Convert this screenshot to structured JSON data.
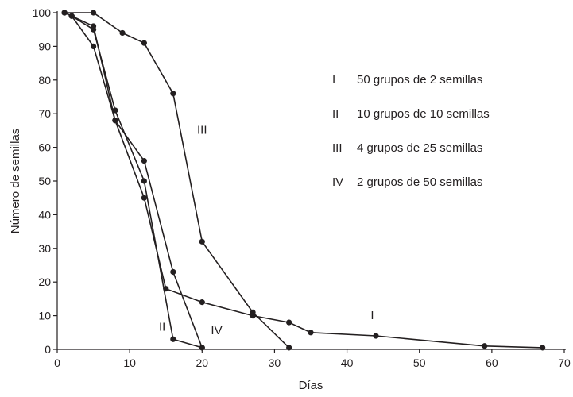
{
  "chart_data": {
    "type": "line",
    "xlabel": "Días",
    "ylabel": "Número de semillas",
    "xlim": [
      0,
      70
    ],
    "ylim": [
      0,
      100
    ],
    "xticks": [
      0,
      10,
      20,
      30,
      40,
      50,
      60,
      70
    ],
    "yticks": [
      0,
      10,
      20,
      30,
      40,
      50,
      60,
      70,
      80,
      90,
      100
    ],
    "grid": false,
    "legend_position": "right",
    "colors": {
      "ink": "#231f20"
    },
    "series": [
      {
        "name": "I",
        "points": [
          [
            1,
            100
          ],
          [
            2,
            99
          ],
          [
            5,
            90
          ],
          [
            8,
            68
          ],
          [
            12,
            45
          ],
          [
            15,
            18
          ],
          [
            20,
            14
          ],
          [
            27,
            10
          ],
          [
            32,
            8
          ],
          [
            35,
            5
          ],
          [
            44,
            4
          ],
          [
            59,
            1
          ],
          [
            67,
            0.5
          ]
        ]
      },
      {
        "name": "II",
        "points": [
          [
            1,
            100
          ],
          [
            2,
            99
          ],
          [
            5,
            95
          ],
          [
            8,
            71
          ],
          [
            12,
            50
          ],
          [
            16,
            3
          ],
          [
            20,
            0.5
          ]
        ]
      },
      {
        "name": "III",
        "points": [
          [
            1,
            100
          ],
          [
            5,
            100
          ],
          [
            9,
            94
          ],
          [
            12,
            91
          ],
          [
            16,
            76
          ],
          [
            20,
            32
          ],
          [
            27,
            11
          ],
          [
            32,
            0.5
          ]
        ]
      },
      {
        "name": "IV",
        "points": [
          [
            1,
            100
          ],
          [
            2,
            99
          ],
          [
            5,
            96
          ],
          [
            8,
            68
          ],
          [
            12,
            56
          ],
          [
            16,
            23
          ],
          [
            20,
            0.5
          ]
        ]
      }
    ],
    "legend": [
      {
        "numeral": "I",
        "text": "50 grupos de 2 semillas"
      },
      {
        "numeral": "II",
        "text": "10 grupos de 10 semillas"
      },
      {
        "numeral": "III",
        "text": "4 grupos de 25 semillas"
      },
      {
        "numeral": "IV",
        "text": "2 grupos de 50 semillas"
      }
    ],
    "annotations": [
      {
        "text": "III",
        "x": 20,
        "y": 64
      },
      {
        "text": "I",
        "x": 43.5,
        "y": 9
      },
      {
        "text": "II",
        "x": 14.5,
        "y": 5.5
      },
      {
        "text": "IV",
        "x": 22,
        "y": 4.5
      }
    ]
  }
}
